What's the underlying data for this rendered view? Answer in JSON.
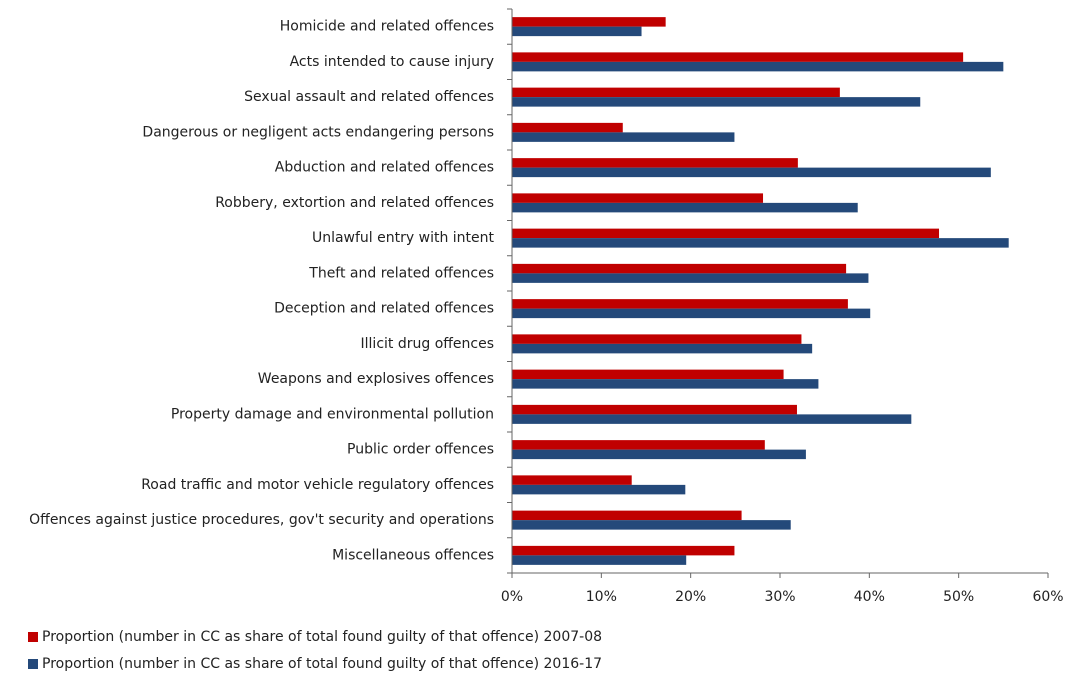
{
  "chart_data": {
    "type": "hbar",
    "categories": [
      "Homicide and related offences",
      "Acts intended to cause injury",
      "Sexual assault and related offences",
      "Dangerous or negligent acts endangering persons",
      "Abduction and related offences",
      "Robbery, extortion and related offences",
      "Unlawful entry with intent",
      "Theft and related offences",
      "Deception and related offences",
      "Illicit drug offences",
      "Weapons and explosives offences",
      "Property damage and environmental pollution",
      "Public order offences",
      "Road traffic and motor vehicle regulatory offences",
      "Offences against justice procedures, gov't security and operations",
      "Miscellaneous offences"
    ],
    "series": [
      {
        "name": "Proportion (number in CC as share of total found guilty of that offence) 2007-08",
        "color": "#c00000",
        "values": [
          17.2,
          50.5,
          36.7,
          12.4,
          32.0,
          28.1,
          47.8,
          37.4,
          37.6,
          32.4,
          30.4,
          31.9,
          28.3,
          13.4,
          25.7,
          24.9
        ]
      },
      {
        "name": "Proportion (number in CC as share of total found guilty of that offence) 2016-17",
        "color": "#24497a",
        "values": [
          14.5,
          55.0,
          45.7,
          24.9,
          53.6,
          38.7,
          55.6,
          39.9,
          40.1,
          33.6,
          34.3,
          44.7,
          32.9,
          19.4,
          31.2,
          19.5
        ]
      }
    ],
    "xlim": [
      0,
      60
    ],
    "xticks": [
      {
        "value": 0,
        "label": "0%"
      },
      {
        "value": 10,
        "label": "10%"
      },
      {
        "value": 20,
        "label": "20%"
      },
      {
        "value": 30,
        "label": "30%"
      },
      {
        "value": 40,
        "label": "40%"
      },
      {
        "value": 50,
        "label": "50%"
      },
      {
        "value": 60,
        "label": "60%"
      }
    ]
  }
}
